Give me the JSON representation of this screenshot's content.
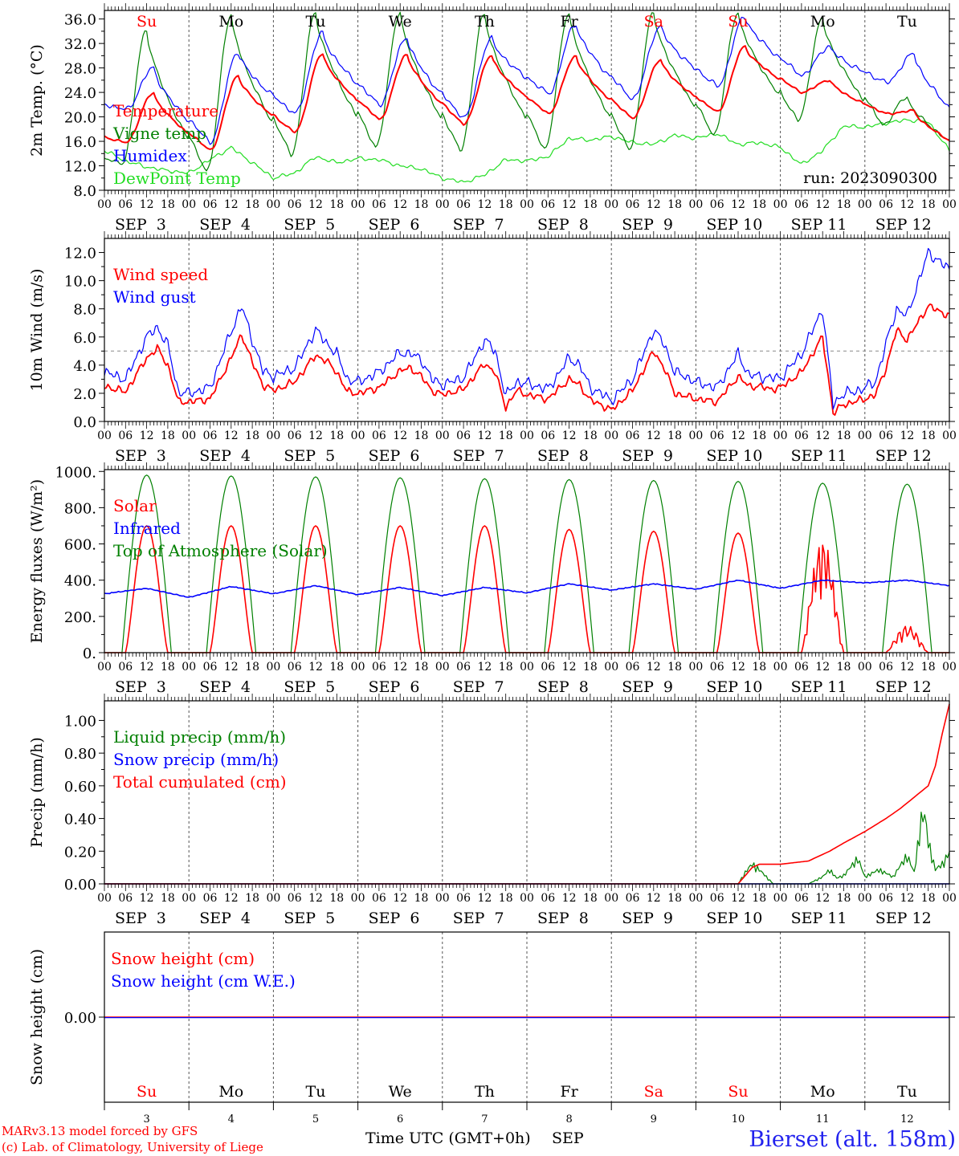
{
  "colors": {
    "temperature": "#ff0000",
    "vigne": "#008000",
    "humidex": "#0000ff",
    "dewpoint": "#22dd22",
    "wind_speed": "#ff0000",
    "wind_gust": "#0000ff",
    "solar": "#ff0000",
    "infrared": "#0000ff",
    "toa": "#008000",
    "liquid": "#008000",
    "snow_precip": "#0000ff",
    "cumulated": "#ff0000",
    "snow_cm": "#ff0000",
    "snow_we": "#0000ff",
    "weekend": "#ff0000",
    "weekday": "#000000",
    "station": "#2222ee"
  },
  "days": [
    {
      "name": "Su",
      "date": "SEP  3",
      "num": "3",
      "weekend": true
    },
    {
      "name": "Mo",
      "date": "SEP  4",
      "num": "4",
      "weekend": false
    },
    {
      "name": "Tu",
      "date": "SEP  5",
      "num": "5",
      "weekend": false
    },
    {
      "name": "We",
      "date": "SEP  6",
      "num": "6",
      "weekend": false
    },
    {
      "name": "Th",
      "date": "SEP  7",
      "num": "7",
      "weekend": false
    },
    {
      "name": "Fr",
      "date": "SEP  8",
      "num": "8",
      "weekend": false
    },
    {
      "name": "Sa",
      "date": "SEP  9",
      "num": "9",
      "weekend": true
    },
    {
      "name": "Su",
      "date": "SEP 10",
      "num": "10",
      "weekend": true
    },
    {
      "name": "Mo",
      "date": "SEP 11",
      "num": "11",
      "weekend": false
    },
    {
      "name": "Tu",
      "date": "SEP 12",
      "num": "12",
      "weekend": false
    }
  ],
  "hour_labels": [
    "00",
    "06",
    "12",
    "18"
  ],
  "final_hour_label": "00",
  "run_label": "run: 2023090300",
  "footer": {
    "line1": "MARv3.13 model forced by GFS",
    "line2": "(c) Lab. of Climatology, University of Liege",
    "xlabel": "Time UTC (GMT+0h)",
    "month": "SEP",
    "station": "Bierset (alt. 158m)"
  },
  "chart_data": [
    {
      "type": "line",
      "ylabel": "2m Temp. (°C)",
      "yticks": [
        "36.0",
        "32.0",
        "28.0",
        "24.0",
        "20.0",
        "16.0",
        "12.0",
        "8.0"
      ],
      "ylim": [
        8,
        37
      ],
      "x_unit": "hours since 2023-09-03 00 UTC",
      "legend": [
        "Temperature",
        "Vigne temp",
        "Humidex",
        "DewPoint Temp"
      ],
      "series": [
        {
          "name": "Temperature",
          "min": [
            15.8,
            14.6,
            17.5,
            19.6,
            18.8,
            20.5,
            19.8,
            20.8,
            24.0,
            20.5,
            14.3
          ],
          "max": [
            23.9,
            26.7,
            30.3,
            30.2,
            30.0,
            29.9,
            29.3,
            31.5,
            26.0,
            21.0
          ]
        },
        {
          "name": "Vigne temp",
          "min": [
            12.4,
            11.0,
            13.8,
            15.0,
            14.5,
            14.7,
            14.6,
            17.0,
            19.4,
            18.7,
            14.0
          ],
          "max": [
            34.2,
            36.5,
            37.0,
            37.0,
            36.8,
            37.0,
            37.0,
            37.0,
            36.0,
            23.2
          ]
        },
        {
          "name": "Humidex",
          "min": [
            21.2,
            15.9,
            20.5,
            22.0,
            19.8,
            23.8,
            22.9,
            25.0,
            26.8,
            25.6,
            18.0
          ],
          "max": [
            28.0,
            30.6,
            33.7,
            33.0,
            32.8,
            35.1,
            34.8,
            36.4,
            31.5,
            30.3
          ]
        },
        {
          "name": "DewPoint Temp",
          "x": [
            0,
            6,
            12,
            18,
            24,
            30,
            36,
            42,
            48,
            54,
            60,
            66,
            72,
            78,
            84,
            90,
            96,
            102,
            108,
            114,
            120,
            126,
            132,
            138,
            144,
            150,
            156,
            162,
            168,
            174,
            180,
            186,
            192,
            198,
            204,
            210,
            216,
            222,
            228,
            234,
            240
          ],
          "y": [
            14.5,
            12.8,
            11.8,
            11.2,
            10.8,
            13.0,
            15.0,
            12.5,
            10.0,
            10.8,
            13.5,
            12.5,
            13.2,
            13.0,
            12.0,
            11.5,
            10.0,
            9.3,
            10.5,
            13.0,
            12.8,
            13.5,
            16.5,
            16.2,
            16.8,
            15.8,
            15.5,
            17.0,
            16.5,
            17.3,
            15.5,
            15.8,
            15.0,
            12.2,
            14.5,
            18.5,
            18.3,
            19.0,
            19.5,
            19.2,
            14.5
          ]
        }
      ]
    },
    {
      "type": "line",
      "ylabel": "10m Wind (m/s)",
      "yticks": [
        "12.0",
        "10.0",
        "8.0",
        "6.0",
        "4.0",
        "2.0",
        "0.0"
      ],
      "ylim": [
        0,
        13
      ],
      "reference_line": 5.0,
      "legend": [
        "Wind speed",
        "Wind gust"
      ],
      "series": [
        {
          "name": "Wind speed",
          "x": [
            0,
            6,
            12,
            15,
            18,
            21,
            24,
            30,
            36,
            39,
            42,
            45,
            48,
            54,
            60,
            63,
            66,
            69,
            72,
            78,
            84,
            87,
            90,
            93,
            96,
            102,
            108,
            111,
            114,
            117,
            120,
            126,
            132,
            135,
            138,
            141,
            144,
            150,
            156,
            159,
            162,
            165,
            168,
            174,
            180,
            183,
            186,
            189,
            192,
            198,
            204,
            207,
            210,
            213,
            216,
            219,
            222,
            225,
            228,
            234,
            240
          ],
          "y": [
            2.5,
            2.1,
            4.5,
            5.2,
            4.0,
            1.4,
            1.4,
            1.6,
            4.5,
            6.2,
            4.2,
            2.6,
            2.2,
            2.8,
            4.7,
            4.3,
            3.5,
            2.1,
            2.0,
            2.4,
            3.6,
            3.8,
            3.2,
            2.2,
            1.9,
            2.3,
            4.1,
            3.5,
            1.0,
            2.2,
            1.9,
            1.6,
            3.0,
            2.6,
            1.5,
            1.2,
            0.8,
            2.2,
            5.0,
            3.8,
            2.0,
            1.8,
            1.6,
            1.4,
            3.2,
            2.5,
            2.5,
            2.3,
            2.4,
            3.5,
            6.0,
            0.6,
            1.2,
            1.4,
            1.6,
            1.9,
            3.8,
            6.5,
            5.8,
            8.2,
            7.5
          ]
        },
        {
          "name": "Wind gust",
          "x": [
            0,
            6,
            12,
            15,
            18,
            21,
            24,
            30,
            36,
            39,
            42,
            45,
            48,
            54,
            60,
            63,
            66,
            69,
            72,
            78,
            84,
            87,
            90,
            93,
            96,
            102,
            108,
            111,
            114,
            117,
            120,
            126,
            132,
            135,
            138,
            141,
            144,
            150,
            156,
            159,
            162,
            165,
            168,
            174,
            180,
            183,
            186,
            189,
            192,
            198,
            204,
            207,
            210,
            213,
            216,
            219,
            222,
            225,
            228,
            234,
            240
          ],
          "y": [
            3.5,
            3.0,
            6.0,
            6.7,
            5.4,
            2.1,
            2.0,
            2.4,
            6.4,
            8.2,
            5.8,
            3.6,
            3.2,
            3.8,
            6.5,
            5.6,
            4.8,
            3.0,
            2.8,
            3.5,
            4.9,
            4.8,
            4.4,
            3.0,
            2.6,
            3.1,
            5.8,
            5.0,
            1.8,
            2.8,
            2.7,
            2.3,
            4.5,
            4.0,
            2.4,
            2.0,
            1.5,
            3.0,
            6.5,
            5.5,
            3.5,
            3.2,
            2.8,
            2.4,
            4.8,
            3.3,
            3.2,
            3.1,
            3.1,
            4.8,
            8.0,
            1.2,
            2.0,
            2.1,
            2.4,
            2.8,
            5.5,
            8.0,
            7.5,
            12.0,
            10.8
          ]
        }
      ]
    },
    {
      "type": "line",
      "ylabel": "Energy fluxes (W/m²)",
      "yticks": [
        "1000.",
        "800.",
        "600.",
        "400.",
        "200.",
        "0."
      ],
      "ylim": [
        0,
        1010
      ],
      "legend": [
        "Solar",
        "Infrared",
        "Top of Atmosphere (Solar)"
      ],
      "series": [
        {
          "name": "Solar",
          "peaks": [
            700,
            700,
            700,
            700,
            700,
            680,
            670,
            660,
            630,
            150
          ]
        },
        {
          "name": "Infrared",
          "x": [
            0,
            12,
            24,
            36,
            48,
            60,
            72,
            84,
            96,
            108,
            120,
            132,
            144,
            156,
            168,
            180,
            192,
            204,
            216,
            228,
            240
          ],
          "y": [
            325,
            355,
            305,
            365,
            325,
            370,
            320,
            360,
            315,
            360,
            330,
            380,
            345,
            380,
            350,
            400,
            355,
            400,
            385,
            400,
            370
          ]
        },
        {
          "name": "Top of Atmosphere (Solar)",
          "peaks": [
            980,
            975,
            970,
            965,
            960,
            955,
            950,
            945,
            935,
            930
          ]
        }
      ]
    },
    {
      "type": "line",
      "ylabel": "Precip (mm/h)",
      "yticks": [
        "1.00",
        "0.80",
        "0.60",
        "0.40",
        "0.20",
        "0.00"
      ],
      "ylim": [
        0,
        1.1
      ],
      "legend": [
        "Liquid precip (mm/h)",
        "Snow precip (mm/h)",
        "Total cumulated (cm)"
      ],
      "series": [
        {
          "name": "Liquid precip (mm/h)",
          "x": [
            0,
            180,
            182,
            184,
            186,
            188,
            190,
            192,
            200,
            204,
            206,
            208,
            210,
            214,
            216,
            220,
            224,
            228,
            230,
            232,
            233,
            234,
            236,
            238,
            240
          ],
          "y": [
            0,
            0,
            0.08,
            0.14,
            0.1,
            0.05,
            0,
            0,
            0,
            0.05,
            0.1,
            0.04,
            0.06,
            0.18,
            0.05,
            0.1,
            0.05,
            0.2,
            0.08,
            0.45,
            0.48,
            0.3,
            0.1,
            0.14,
            0.22
          ]
        },
        {
          "name": "Snow precip (mm/h)",
          "x": [
            0,
            240
          ],
          "y": [
            0,
            0
          ]
        },
        {
          "name": "Total cumulated (cm)",
          "x": [
            0,
            180,
            182,
            184,
            186,
            192,
            200,
            206,
            210,
            216,
            222,
            226,
            230,
            234,
            236,
            238,
            240
          ],
          "y": [
            0,
            0,
            0.05,
            0.1,
            0.12,
            0.12,
            0.14,
            0.2,
            0.25,
            0.32,
            0.4,
            0.46,
            0.53,
            0.6,
            0.72,
            0.92,
            1.1
          ]
        }
      ]
    },
    {
      "type": "line",
      "ylabel": "Snow height (cm)",
      "yticks": [
        "0.00"
      ],
      "legend": [
        "Snow height (cm)",
        "Snow height (cm W.E.)"
      ],
      "series": [
        {
          "name": "Snow height (cm)",
          "x": [
            0,
            240
          ],
          "y": [
            0,
            0
          ]
        },
        {
          "name": "Snow height (cm W.E.)",
          "x": [
            0,
            240
          ],
          "y": [
            0,
            0
          ]
        }
      ]
    }
  ]
}
